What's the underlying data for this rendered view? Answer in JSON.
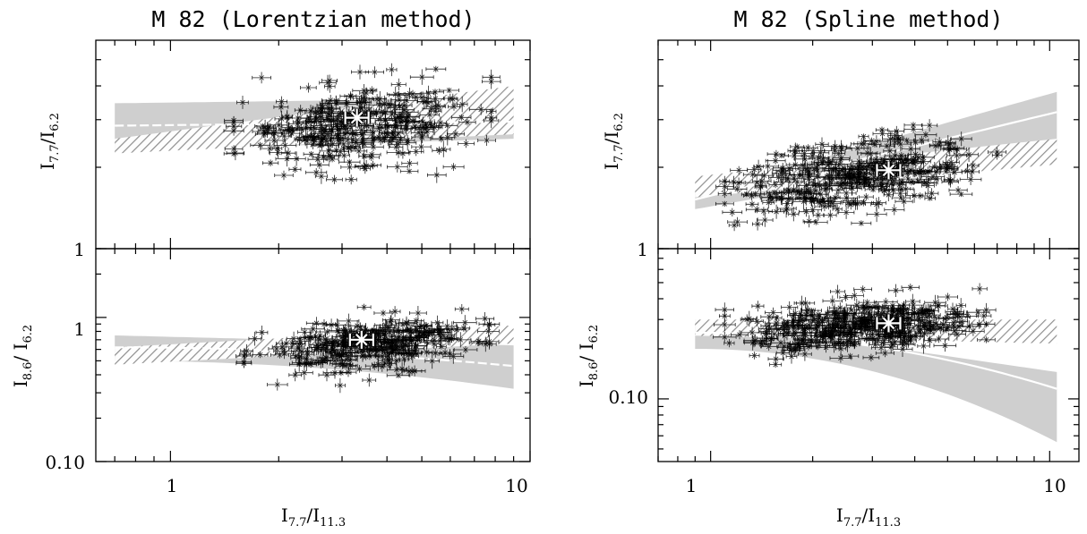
{
  "figure": {
    "colors": {
      "axes": "#000000",
      "band": "#cfcfcf",
      "hatch": "#8a8a8a",
      "model_line": "#ffffff",
      "points": "#000000",
      "mean_marker": "#ffffff"
    }
  },
  "chart_data": [
    {
      "type": "scatter",
      "panel": "top-left",
      "title": "M 82 (Lorentzian method)",
      "ylabel": {
        "main": "I",
        "sub1": "7.7",
        "slash": "/I",
        "sub2": "6.2"
      },
      "xscale": "log",
      "yscale": "log",
      "xlim": [
        0.62,
        10
      ],
      "ylim": [
        1,
        5.9
      ],
      "y_tick_labels": [
        "1"
      ],
      "series": [
        {
          "kind": "band",
          "x_from": 0.7,
          "x_to": 9.0,
          "lower": [
            2.3,
            2.55
          ],
          "upper": [
            3.45,
            3.6
          ]
        },
        {
          "kind": "hatched-band",
          "x_from": 0.7,
          "x_to": 9.0,
          "lower": [
            2.25,
            2.65
          ],
          "upper": [
            2.55,
            4.0
          ]
        },
        {
          "kind": "model-line",
          "x": [
            0.7,
            9.0
          ],
          "y": [
            2.85,
            2.95
          ]
        },
        {
          "kind": "cloud",
          "x_range": [
            1.5,
            7.8
          ],
          "y_center": [
            2.6,
            3.1
          ],
          "y_spread": 0.09,
          "n": 330
        },
        {
          "kind": "mean",
          "x": 3.3,
          "y": 3.05
        }
      ]
    },
    {
      "type": "scatter",
      "panel": "bottom-left",
      "ylabel": {
        "main": "I",
        "sub1": "8.6",
        "slash": "/ I",
        "sub2": "6.2"
      },
      "xlabel": {
        "main": "I",
        "sub1": "7.7",
        "slash": "/I",
        "sub2": "11.3"
      },
      "xscale": "log",
      "yscale": "log",
      "xlim": [
        0.62,
        10
      ],
      "ylim": [
        0.1,
        3.0
      ],
      "x_tick_labels": [
        "1",
        "10"
      ],
      "y_tick_labels": [
        "1",
        "0.10"
      ],
      "series": [
        {
          "kind": "band",
          "x_from": 0.7,
          "x_to": 9.0,
          "lower": [
            0.5,
            0.32
          ],
          "upper": [
            0.75,
            0.64
          ]
        },
        {
          "kind": "hatched-band",
          "x_from": 0.7,
          "x_to": 9.0,
          "lower": [
            0.47,
            0.66
          ],
          "upper": [
            0.62,
            0.88
          ]
        },
        {
          "kind": "model-line",
          "x": [
            0.7,
            9.0
          ],
          "y": [
            0.62,
            0.46
          ]
        },
        {
          "kind": "cloud",
          "x_range": [
            1.6,
            7.7
          ],
          "y_center": [
            0.55,
            0.73
          ],
          "y_spread": 0.11,
          "n": 330
        },
        {
          "kind": "mean",
          "x": 3.4,
          "y": 0.7
        }
      ]
    },
    {
      "type": "scatter",
      "panel": "top-right",
      "title": "M 82 (Spline method)",
      "ylabel": {
        "main": "I",
        "sub1": "7.7",
        "slash": "/I",
        "sub2": "6.2"
      },
      "xscale": "log",
      "yscale": "log",
      "xlim": [
        0.7,
        12.2
      ],
      "ylim": [
        1,
        5.9
      ],
      "y_tick_labels": [
        "1"
      ],
      "series": [
        {
          "kind": "band",
          "x_from": 0.9,
          "x_to": 10.5,
          "lower": [
            1.4,
            2.4
          ],
          "upper": [
            1.6,
            3.8
          ]
        },
        {
          "kind": "hatched-band",
          "x_from": 0.9,
          "x_to": 10.5,
          "lower": [
            1.55,
            2.05
          ],
          "upper": [
            1.85,
            2.55
          ]
        },
        {
          "kind": "model-line",
          "x": [
            0.9,
            10.5
          ],
          "y": [
            1.52,
            3.2
          ]
        },
        {
          "kind": "cloud",
          "x_range": [
            1.1,
            7.0
          ],
          "y_center": [
            1.6,
            2.2
          ],
          "y_spread": 0.08,
          "n": 380
        },
        {
          "kind": "mean",
          "x": 3.35,
          "y": 1.95
        }
      ]
    },
    {
      "type": "scatter",
      "panel": "bottom-right",
      "ylabel": {
        "main": "I",
        "sub1": "8.6",
        "slash": "/ I",
        "sub2": "6.2"
      },
      "xlabel": {
        "main": "I",
        "sub1": "7.7",
        "slash": "/I",
        "sub2": "11.3"
      },
      "xscale": "log",
      "yscale": "log",
      "xlim": [
        0.7,
        12.2
      ],
      "ylim": [
        0.042,
        0.8
      ],
      "x_tick_labels": [
        "1",
        "10"
      ],
      "y_tick_labels": [
        "0.10"
      ],
      "series": [
        {
          "kind": "band",
          "x_from": 0.9,
          "x_to": 10.5,
          "lower": [
            0.2,
            0.055
          ],
          "upper": [
            0.3,
            0.145
          ]
        },
        {
          "kind": "hatched-band",
          "x_from": 0.9,
          "x_to": 10.5,
          "lower": [
            0.24,
            0.215
          ],
          "upper": [
            0.3,
            0.3
          ]
        },
        {
          "kind": "model-line",
          "x": [
            0.9,
            10.5
          ],
          "y": [
            0.25,
            0.115
          ]
        },
        {
          "kind": "cloud",
          "x_range": [
            1.1,
            6.5
          ],
          "y_center": [
            0.24,
            0.32
          ],
          "y_spread": 0.1,
          "n": 420
        },
        {
          "kind": "mean",
          "x": 3.35,
          "y": 0.285
        }
      ]
    }
  ]
}
